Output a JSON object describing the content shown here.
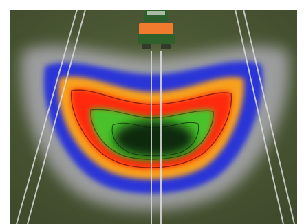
{
  "image": {
    "subject": "tractor-spreader-distribution-heatmap",
    "colors": {
      "border": "#ffffff",
      "grass": "#4d5a36",
      "haze": "#b8b6c2",
      "blue": "#2b35d8",
      "orange": "#f7a11a",
      "red": "#ff2a10",
      "green": "#49c22c",
      "core": "#0d2c0f",
      "tractor_green": "#2f5f2a",
      "tractor_orange": "#f07b2e",
      "lines": "#dcdcdc"
    }
  }
}
